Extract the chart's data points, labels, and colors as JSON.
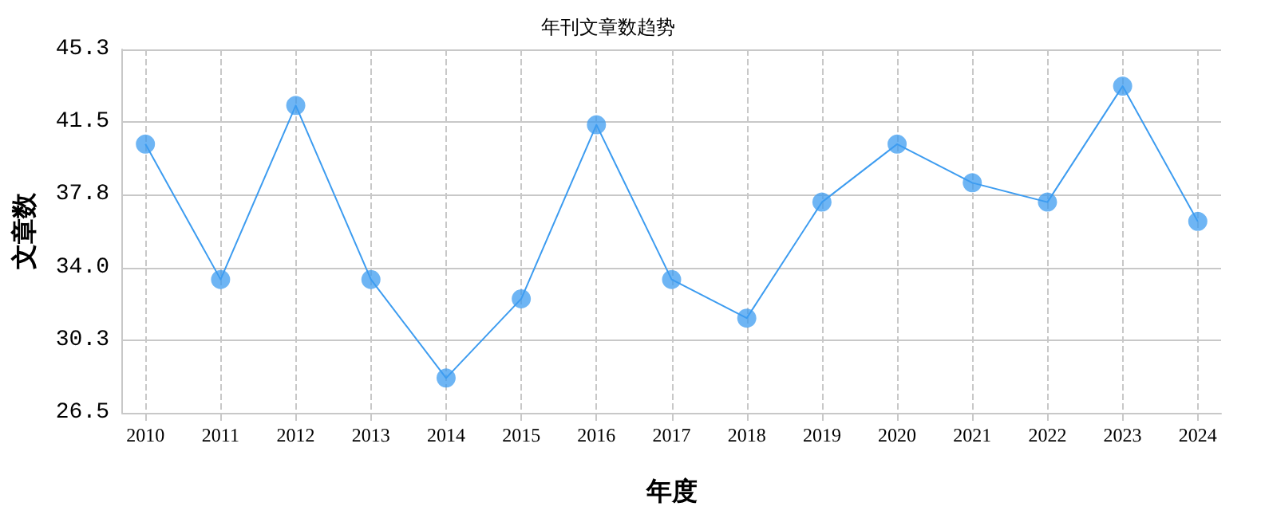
{
  "chart_data": {
    "type": "line",
    "title": "年刊文章数趋势",
    "xlabel": "年度",
    "ylabel": "文章数",
    "x": [
      2010,
      2011,
      2012,
      2013,
      2014,
      2015,
      2016,
      2017,
      2018,
      2019,
      2020,
      2021,
      2022,
      2023,
      2024
    ],
    "series": [
      {
        "color": "#3d9cf0",
        "values": [
          40.4,
          33.4,
          42.4,
          33.4,
          28.3,
          32.4,
          41.4,
          33.4,
          31.4,
          37.4,
          40.4,
          38.4,
          37.4,
          43.4,
          36.4
        ]
      }
    ],
    "xlim": [
      2009.69,
      2024.31
    ],
    "xticks": [
      2010,
      2011,
      2012,
      2013,
      2014,
      2015,
      2016,
      2017,
      2018,
      2019,
      2020,
      2021,
      2022,
      2023,
      2024
    ],
    "ylim": [
      26.5,
      45.3
    ],
    "yticks": [
      26.5,
      {
        "value": 30.26,
        "label": "30.3"
      },
      {
        "value": 34.02,
        "label": "34.0"
      },
      {
        "value": 37.78,
        "label": "37.8"
      },
      {
        "value": 41.54,
        "label": "41.5"
      },
      45.3
    ],
    "grid": true,
    "marker": "circle",
    "line_style": "solid"
  }
}
